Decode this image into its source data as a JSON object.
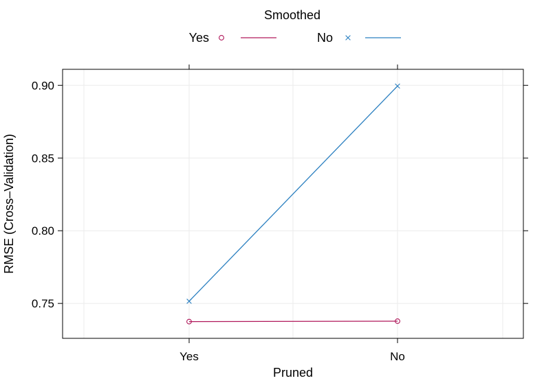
{
  "chart_data": {
    "type": "line",
    "title": "",
    "xlabel": "Pruned",
    "ylabel": "RMSE (Cross–Validation)",
    "categories": [
      "Yes",
      "No"
    ],
    "ylim": [
      0.726,
      0.911
    ],
    "yticks": [
      0.75,
      0.8,
      0.85,
      0.9
    ],
    "ytick_labels": [
      "0.75",
      "0.80",
      "0.85",
      "0.90"
    ],
    "grid": true,
    "legend": {
      "title": "Smoothed",
      "placement": "top-center"
    },
    "series": [
      {
        "name": "Yes",
        "marker": "circle",
        "color": "#b0175a",
        "values": [
          0.7375,
          0.7378
        ]
      },
      {
        "name": "No",
        "marker": "cross",
        "color": "#2a7fc0",
        "values": [
          0.7515,
          0.8995
        ]
      }
    ]
  }
}
